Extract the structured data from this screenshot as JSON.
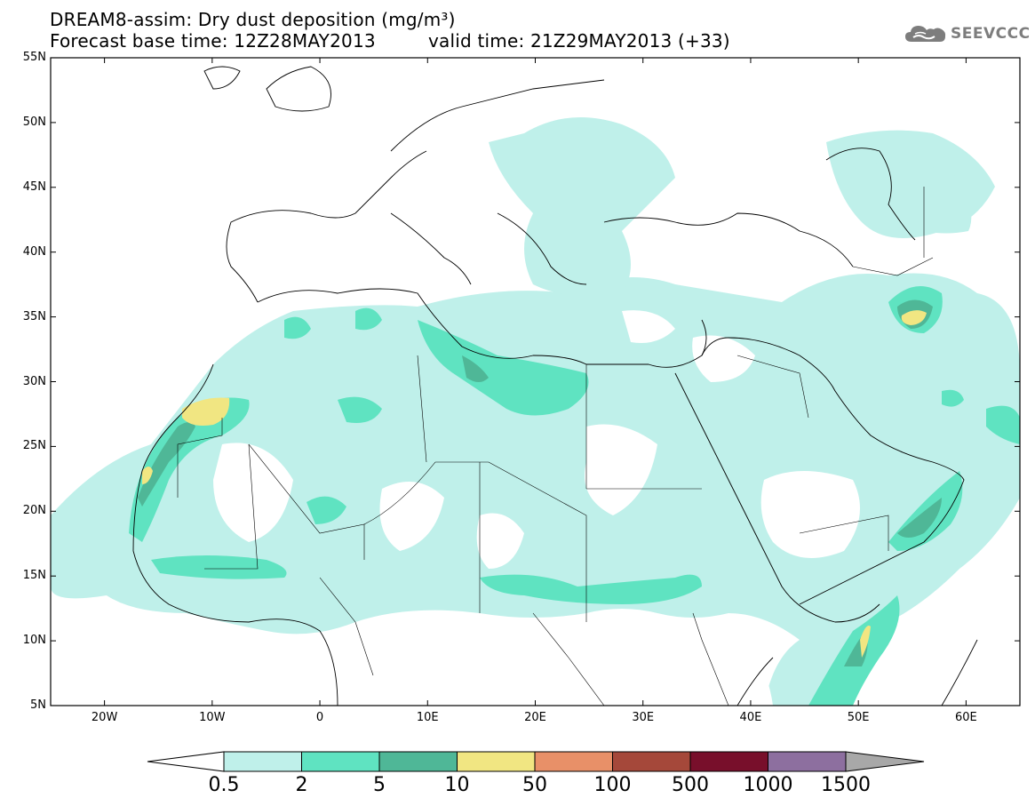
{
  "title": {
    "line1": "DREAM8-assim: Dry dust deposition (mg/m³)",
    "line2_base": "Forecast base time: 12Z28MAY2013",
    "line2_valid": "valid time: 21Z29MAY2013 (+33)"
  },
  "logo": {
    "text": "SEEVCCC",
    "icon": "cloud-icon"
  },
  "map": {
    "lon_range": [
      -25,
      65
    ],
    "lat_range": [
      5,
      55
    ],
    "lat_ticks": [
      "55N",
      "50N",
      "45N",
      "40N",
      "35N",
      "30N",
      "25N",
      "20N",
      "15N",
      "10N",
      "5N"
    ],
    "lon_ticks": [
      "20W",
      "10W",
      "0",
      "10E",
      "20E",
      "30E",
      "40E",
      "50E",
      "60E"
    ]
  },
  "colorbar": {
    "labels": [
      "0.5",
      "2",
      "5",
      "10",
      "50",
      "100",
      "500",
      "1000",
      "1500"
    ],
    "colors": [
      "#bff0ea",
      "#5fe3c1",
      "#4fb797",
      "#f1e682",
      "#e89068",
      "#a5483a",
      "#780f2b",
      "#8d6f9f",
      "#a8a8a8"
    ],
    "under_color": "#ffffff",
    "over_color": "#a8a8a8"
  }
}
